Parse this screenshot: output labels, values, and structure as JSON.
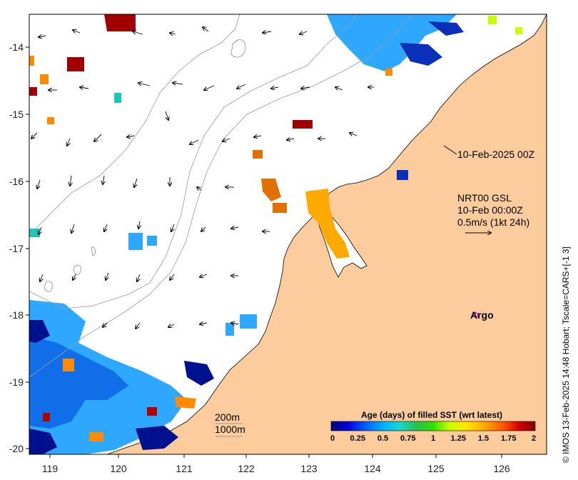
{
  "map": {
    "lon_range": [
      118.6,
      126.7
    ],
    "lat_range": [
      -20.1,
      -13.5
    ],
    "x_ticks": [
      "119",
      "120",
      "121",
      "122",
      "123",
      "124",
      "125",
      "126"
    ],
    "y_ticks": [
      "-14",
      "-15",
      "-16",
      "-17",
      "-18",
      "-19",
      "-20"
    ],
    "colors": {
      "land": "#fccc9c",
      "ocean": "#ffffff",
      "coast": "#000000",
      "contour": "#9a9a9a",
      "frame": "#000000"
    }
  },
  "annotations": {
    "timestamp_label": "10-Feb-2025 00Z",
    "product_line1": "NRT00 GSL",
    "product_line2": "10-Feb 00:00Z",
    "scale_label": "0.5m/s (1kt 24h)",
    "argo_label": "Argo",
    "argo_color": "#ff00ff",
    "contour_200": "200m",
    "contour_1000": "1000m"
  },
  "colorbar": {
    "title": "Age (days) of filled SST (wrt latest)",
    "ticks": [
      "0",
      "0.25",
      "0.5",
      "0.75",
      "1",
      "1.25",
      "1.5",
      "1.75",
      "2"
    ],
    "stops": [
      "#00007f",
      "#0000d9",
      "#0060ff",
      "#00b4ff",
      "#18d8c8",
      "#28c050",
      "#30e000",
      "#c8ff00",
      "#ffe800",
      "#ffaa00",
      "#ff5a00",
      "#d00000",
      "#800000"
    ]
  },
  "credit": "© IMOS 13-Feb-2025 14:48 Hobart; Tscale=CARS+[-1 3]"
}
